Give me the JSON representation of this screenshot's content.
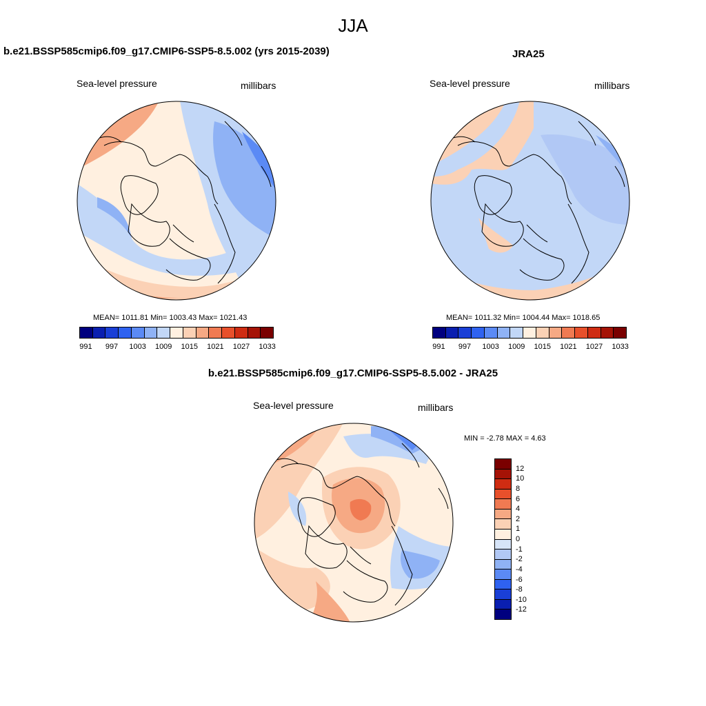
{
  "season_title": "JJA",
  "colors": {
    "abs_scale": [
      "#00007f",
      "#0a1fb0",
      "#1a3fd6",
      "#2f62f0",
      "#5b8af5",
      "#8fb2f5",
      "#c2d7f7",
      "#fff0e0",
      "#fbd1b5",
      "#f6a984",
      "#f07a52",
      "#e8502b",
      "#cf2c12",
      "#a51306",
      "#7a0000"
    ],
    "diff_scale_top_to_bottom": [
      "#7a0000",
      "#a51306",
      "#cf2c12",
      "#e8502b",
      "#f07a52",
      "#f6a984",
      "#fbd1b5",
      "#fff0e0",
      "#d6e4f8",
      "#b1c8f5",
      "#8fb2f5",
      "#5b8af5",
      "#2f62f0",
      "#1a3fd6",
      "#0a1fb0",
      "#00007f"
    ],
    "land_outline": "#000000"
  },
  "panels": {
    "model": {
      "title": "b.e21.BSSP585cmip6.f09_g17.CMIP6-SSP5-8.5.002 (yrs 2015-2039)",
      "variable": "Sea-level pressure",
      "units": "millibars",
      "stats": "MEAN= 1011.81  Min= 1003.43  Max= 1021.43"
    },
    "obs": {
      "title": "JRA25",
      "variable": "Sea-level pressure",
      "units": "millibars",
      "stats": "MEAN= 1011.32  Min= 1004.44  Max= 1018.65"
    },
    "diff": {
      "title": "b.e21.BSSP585cmip6.f09_g17.CMIP6-SSP5-8.5.002 - JRA25",
      "variable": "Sea-level pressure",
      "units": "millibars",
      "stats": "MIN =  -2.78 MAX =   4.63"
    }
  },
  "abs_colorbar_labels": [
    "991",
    "997",
    "1003",
    "1009",
    "1015",
    "1021",
    "1027",
    "1033"
  ],
  "diff_colorbar_labels": [
    "12",
    "10",
    "8",
    "6",
    "4",
    "2",
    "1",
    "0",
    "-1",
    "-2",
    "-4",
    "-6",
    "-8",
    "-10",
    "-12"
  ]
}
